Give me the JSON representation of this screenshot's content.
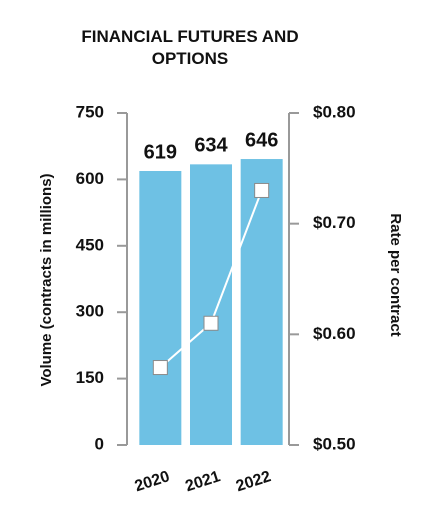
{
  "chart_data": {
    "type": "bar",
    "title": "FINANCIAL FUTURES AND OPTIONS",
    "y_label": "Volume (contracts in millions)",
    "y2_label": "Rate per contract",
    "categories": [
      "2020",
      "2021",
      "2022"
    ],
    "series": [
      {
        "name": "Volume",
        "type": "bar",
        "color": "#6ec1e4",
        "values": [
          619,
          634,
          646
        ]
      },
      {
        "name": "Rate",
        "type": "line",
        "axis": "y2",
        "color": "#ffffff",
        "values": [
          0.57,
          0.61,
          0.73
        ]
      }
    ],
    "ylim": [
      0,
      750
    ],
    "yticks": [
      0,
      150,
      300,
      450,
      600,
      750
    ],
    "y2lim": [
      0.5,
      0.8
    ],
    "y2ticks": [
      {
        "value": 0.5,
        "label": "$0.50"
      },
      {
        "value": 0.6,
        "label": "$0.60"
      },
      {
        "value": 0.7,
        "label": "$0.70"
      },
      {
        "value": 0.8,
        "label": "$0.80"
      }
    ]
  }
}
